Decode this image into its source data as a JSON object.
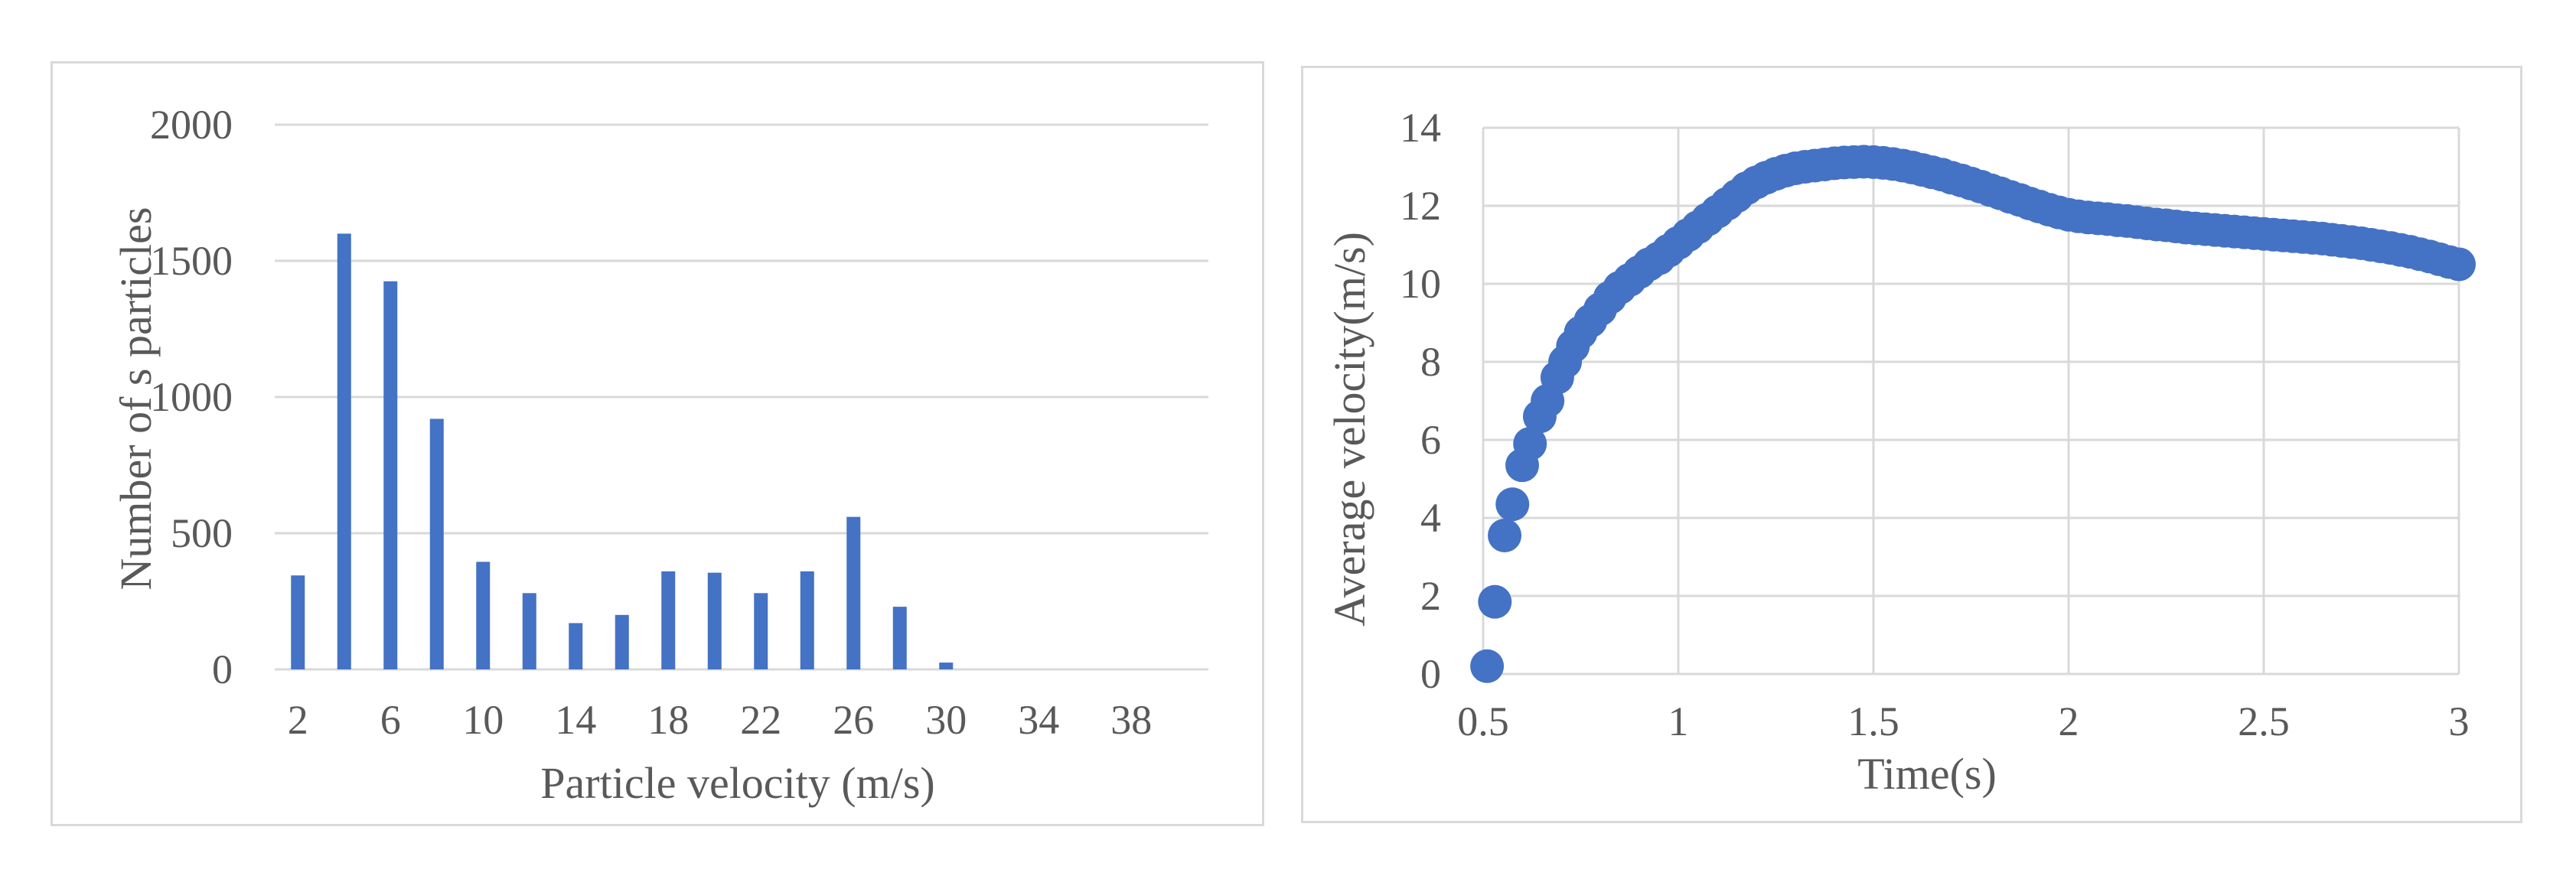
{
  "chart_data": [
    {
      "type": "bar",
      "title": "",
      "xlabel": "Particle velocity (m/s)",
      "ylabel": "Number of s particles",
      "x": [
        2,
        4,
        6,
        8,
        10,
        12,
        14,
        16,
        18,
        20,
        22,
        24,
        26,
        28,
        30,
        32,
        34,
        36,
        38,
        40
      ],
      "x_tick_labels": [
        "2",
        "6",
        "10",
        "14",
        "18",
        "22",
        "26",
        "30",
        "34",
        "38"
      ],
      "values": [
        345,
        1600,
        1425,
        920,
        395,
        280,
        170,
        200,
        360,
        355,
        280,
        360,
        560,
        230,
        25,
        0,
        0,
        0,
        0,
        0
      ],
      "ylim": [
        0,
        2000
      ],
      "y_ticks": [
        0,
        500,
        1000,
        1500,
        2000
      ],
      "grid": "horizontal",
      "color": "#4472c4",
      "legend": "none"
    },
    {
      "type": "scatter",
      "title": "",
      "xlabel": "Time(s)",
      "ylabel": "Average velocity(m/s)",
      "xlim": [
        0.5,
        3
      ],
      "ylim": [
        0,
        14
      ],
      "x_ticks": [
        0.5,
        1,
        1.5,
        2,
        2.5,
        3
      ],
      "y_ticks": [
        0,
        2,
        4,
        6,
        8,
        10,
        12,
        14
      ],
      "grid": "both",
      "color": "#4472c4",
      "legend": "none",
      "points": [
        [
          0.51,
          0.2
        ],
        [
          0.53,
          1.85
        ],
        [
          0.555,
          3.55
        ],
        [
          0.575,
          4.35
        ],
        [
          0.6,
          5.35
        ],
        [
          0.62,
          5.9
        ],
        [
          0.645,
          6.6
        ],
        [
          0.665,
          7.0
        ],
        [
          0.69,
          7.6
        ],
        [
          0.71,
          8.0
        ],
        [
          0.73,
          8.4
        ],
        [
          0.75,
          8.75
        ],
        [
          0.775,
          9.05
        ],
        [
          0.8,
          9.35
        ],
        [
          0.825,
          9.65
        ],
        [
          0.85,
          9.9
        ],
        [
          0.875,
          10.1
        ],
        [
          0.9,
          10.3
        ],
        [
          0.925,
          10.5
        ],
        [
          0.95,
          10.65
        ],
        [
          0.975,
          10.85
        ],
        [
          1.0,
          11.05
        ],
        [
          1.025,
          11.25
        ],
        [
          1.05,
          11.45
        ],
        [
          1.075,
          11.65
        ],
        [
          1.1,
          11.85
        ],
        [
          1.125,
          12.05
        ],
        [
          1.15,
          12.25
        ],
        [
          1.175,
          12.45
        ],
        [
          1.2,
          12.6
        ],
        [
          1.225,
          12.72
        ],
        [
          1.25,
          12.82
        ],
        [
          1.275,
          12.9
        ],
        [
          1.3,
          12.96
        ],
        [
          1.325,
          13.0
        ],
        [
          1.35,
          13.03
        ],
        [
          1.375,
          13.06
        ],
        [
          1.4,
          13.09
        ],
        [
          1.425,
          13.11
        ],
        [
          1.45,
          13.12
        ],
        [
          1.475,
          13.13
        ],
        [
          1.5,
          13.12
        ],
        [
          1.525,
          13.1
        ],
        [
          1.55,
          13.07
        ],
        [
          1.575,
          13.03
        ],
        [
          1.6,
          12.98
        ],
        [
          1.625,
          12.92
        ],
        [
          1.65,
          12.86
        ],
        [
          1.675,
          12.8
        ],
        [
          1.7,
          12.72
        ],
        [
          1.725,
          12.65
        ],
        [
          1.75,
          12.57
        ],
        [
          1.775,
          12.49
        ],
        [
          1.8,
          12.4
        ],
        [
          1.825,
          12.32
        ],
        [
          1.85,
          12.23
        ],
        [
          1.875,
          12.15
        ],
        [
          1.9,
          12.06
        ],
        [
          1.925,
          11.98
        ],
        [
          1.95,
          11.9
        ],
        [
          1.975,
          11.83
        ],
        [
          2.0,
          11.77
        ],
        [
          2.025,
          11.73
        ],
        [
          2.05,
          11.7
        ],
        [
          2.075,
          11.68
        ],
        [
          2.1,
          11.66
        ],
        [
          2.125,
          11.63
        ],
        [
          2.15,
          11.61
        ],
        [
          2.175,
          11.58
        ],
        [
          2.2,
          11.55
        ],
        [
          2.225,
          11.52
        ],
        [
          2.25,
          11.5
        ],
        [
          2.275,
          11.47
        ],
        [
          2.3,
          11.44
        ],
        [
          2.325,
          11.42
        ],
        [
          2.35,
          11.4
        ],
        [
          2.375,
          11.38
        ],
        [
          2.4,
          11.36
        ],
        [
          2.425,
          11.34
        ],
        [
          2.45,
          11.32
        ],
        [
          2.475,
          11.3
        ],
        [
          2.5,
          11.28
        ],
        [
          2.525,
          11.26
        ],
        [
          2.55,
          11.24
        ],
        [
          2.575,
          11.22
        ],
        [
          2.6,
          11.2
        ],
        [
          2.625,
          11.18
        ],
        [
          2.65,
          11.16
        ],
        [
          2.675,
          11.13
        ],
        [
          2.7,
          11.1
        ],
        [
          2.725,
          11.07
        ],
        [
          2.75,
          11.04
        ],
        [
          2.775,
          11.0
        ],
        [
          2.8,
          10.96
        ],
        [
          2.825,
          10.92
        ],
        [
          2.85,
          10.87
        ],
        [
          2.875,
          10.82
        ],
        [
          2.9,
          10.76
        ],
        [
          2.925,
          10.7
        ],
        [
          2.95,
          10.63
        ],
        [
          2.975,
          10.56
        ],
        [
          3.0,
          10.5
        ]
      ]
    }
  ]
}
